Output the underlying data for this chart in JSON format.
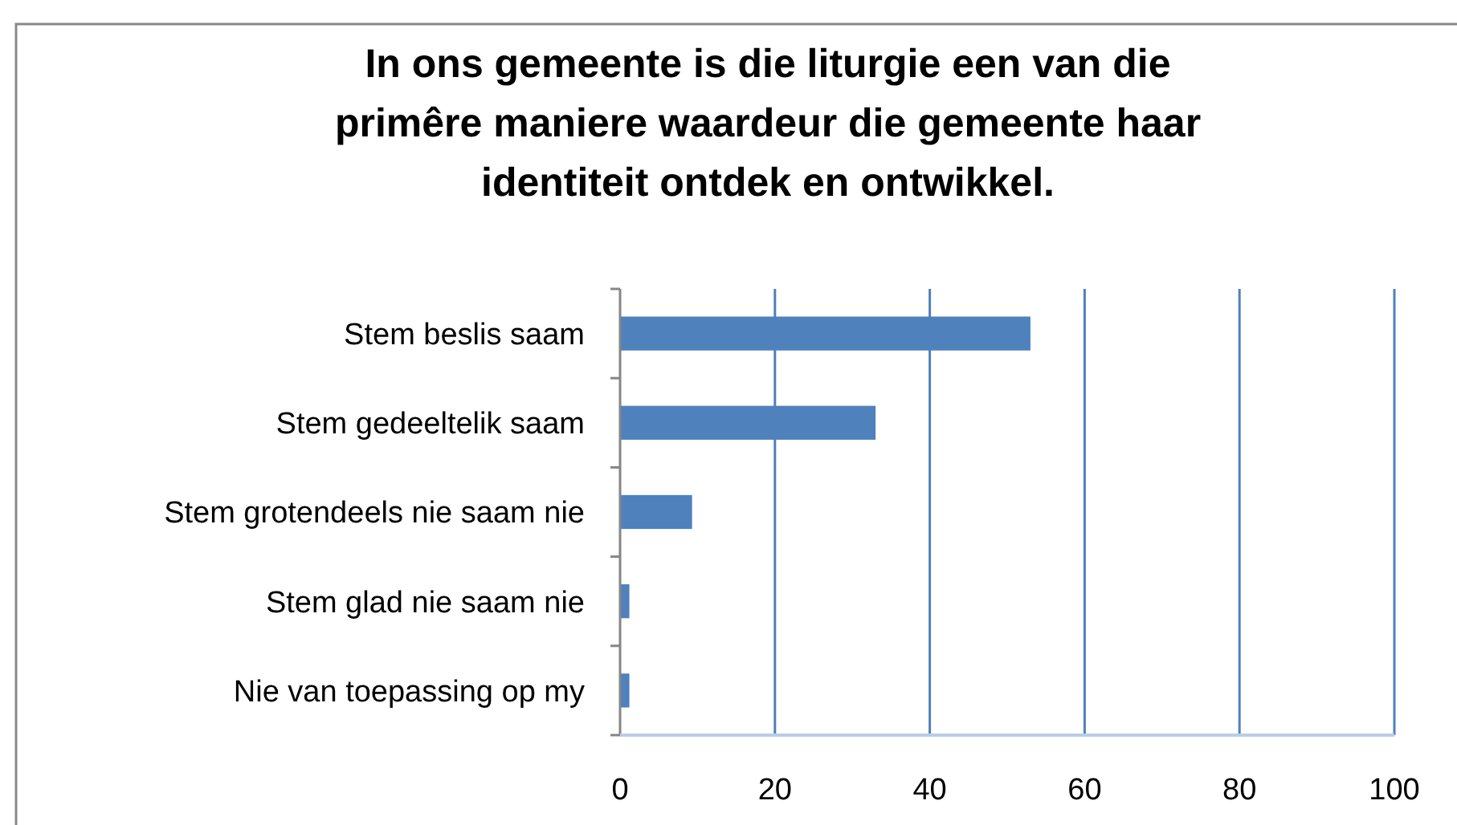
{
  "chart_data": {
    "type": "bar",
    "orientation": "horizontal",
    "title": "In ons gemeente is die liturgie een van die primêre maniere waardeur die gemeente haar identiteit ontdek en ontwikkel.",
    "categories": [
      "Stem beslis saam",
      "Stem gedeeltelik saam",
      "Stem grotendeels nie saam nie",
      "Stem glad nie saam nie",
      "Nie van toepassing op my"
    ],
    "values": [
      53,
      33,
      9.3,
      1.2,
      1.2
    ],
    "color": "#4f81bd",
    "xlim": [
      0,
      100
    ],
    "xticks": [
      0,
      20,
      40,
      60,
      80,
      100
    ],
    "grid": "x"
  }
}
